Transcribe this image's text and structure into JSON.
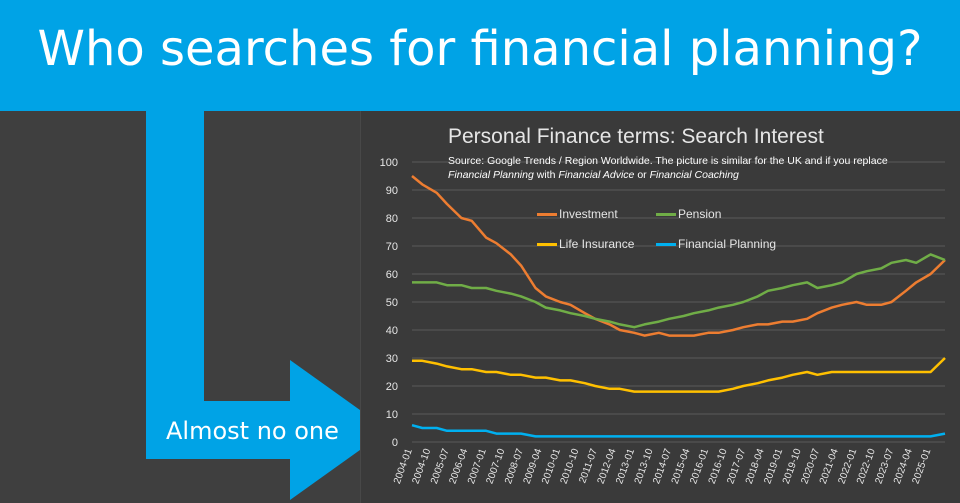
{
  "headline": "Who searches for financial planning?",
  "callout": "Almost no one",
  "colors": {
    "banner": "#00a3e6",
    "investment": "#ed7d31",
    "pension": "#70ad47",
    "life_insurance": "#ffc000",
    "financial_planning": "#00b0f0"
  },
  "chart_data": {
    "type": "line",
    "title": "Personal Finance terms: Search Interest",
    "source": {
      "part1": "Source: Google Trends / Region Worldwide. The picture is similar for the UK and if you replace",
      "term1": "Financial Planning",
      "part2": " with ",
      "term2": "Financial Advice",
      "part3": " or ",
      "term3": "Financial Coaching"
    },
    "ylim": [
      0,
      100
    ],
    "yticks": [
      0,
      10,
      20,
      30,
      40,
      50,
      60,
      70,
      80,
      90,
      100
    ],
    "xlabel": "",
    "ylabel": "",
    "legend_position": "top-center",
    "xticks": [
      "2004-01",
      "2004-10",
      "2005-07",
      "2006-04",
      "2007-01",
      "2007-10",
      "2008-07",
      "2009-04",
      "2010-01",
      "2010-10",
      "2011-07",
      "2012-04",
      "2013-01",
      "2013-10",
      "2014-07",
      "2015-04",
      "2016-01",
      "2016-10",
      "2017-07",
      "2018-04",
      "2019-01",
      "2019-10",
      "2020-07",
      "2021-04",
      "2022-01",
      "2022-10",
      "2023-07",
      "2024-04",
      "2025-01"
    ],
    "x_range": [
      "2004-01",
      "2025-08"
    ],
    "series": [
      {
        "name": "Investment",
        "color_key": "investment",
        "points": [
          [
            "2004-01",
            95
          ],
          [
            "2004-06",
            92
          ],
          [
            "2005-01",
            89
          ],
          [
            "2005-06",
            85
          ],
          [
            "2006-01",
            80
          ],
          [
            "2006-06",
            79
          ],
          [
            "2007-01",
            73
          ],
          [
            "2007-06",
            71
          ],
          [
            "2008-01",
            67
          ],
          [
            "2008-06",
            63
          ],
          [
            "2009-01",
            55
          ],
          [
            "2009-06",
            52
          ],
          [
            "2010-01",
            50
          ],
          [
            "2010-06",
            49
          ],
          [
            "2011-01",
            46
          ],
          [
            "2011-06",
            44
          ],
          [
            "2012-01",
            42
          ],
          [
            "2012-06",
            40
          ],
          [
            "2013-01",
            39
          ],
          [
            "2013-06",
            38
          ],
          [
            "2014-01",
            39
          ],
          [
            "2014-06",
            38
          ],
          [
            "2015-01",
            38
          ],
          [
            "2015-06",
            38
          ],
          [
            "2016-01",
            39
          ],
          [
            "2016-06",
            39
          ],
          [
            "2017-01",
            40
          ],
          [
            "2017-06",
            41
          ],
          [
            "2018-01",
            42
          ],
          [
            "2018-06",
            42
          ],
          [
            "2019-01",
            43
          ],
          [
            "2019-06",
            43
          ],
          [
            "2020-01",
            44
          ],
          [
            "2020-06",
            46
          ],
          [
            "2021-01",
            48
          ],
          [
            "2021-06",
            49
          ],
          [
            "2022-01",
            50
          ],
          [
            "2022-06",
            49
          ],
          [
            "2023-01",
            49
          ],
          [
            "2023-06",
            50
          ],
          [
            "2024-01",
            54
          ],
          [
            "2024-06",
            57
          ],
          [
            "2025-01",
            60
          ],
          [
            "2025-08",
            65
          ]
        ]
      },
      {
        "name": "Pension",
        "color_key": "pension",
        "points": [
          [
            "2004-01",
            57
          ],
          [
            "2004-06",
            57
          ],
          [
            "2005-01",
            57
          ],
          [
            "2005-06",
            56
          ],
          [
            "2006-01",
            56
          ],
          [
            "2006-06",
            55
          ],
          [
            "2007-01",
            55
          ],
          [
            "2007-06",
            54
          ],
          [
            "2008-01",
            53
          ],
          [
            "2008-06",
            52
          ],
          [
            "2009-01",
            50
          ],
          [
            "2009-06",
            48
          ],
          [
            "2010-01",
            47
          ],
          [
            "2010-06",
            46
          ],
          [
            "2011-01",
            45
          ],
          [
            "2011-06",
            44
          ],
          [
            "2012-01",
            43
          ],
          [
            "2012-06",
            42
          ],
          [
            "2013-01",
            41
          ],
          [
            "2013-06",
            42
          ],
          [
            "2014-01",
            43
          ],
          [
            "2014-06",
            44
          ],
          [
            "2015-01",
            45
          ],
          [
            "2015-06",
            46
          ],
          [
            "2016-01",
            47
          ],
          [
            "2016-06",
            48
          ],
          [
            "2017-01",
            49
          ],
          [
            "2017-06",
            50
          ],
          [
            "2018-01",
            52
          ],
          [
            "2018-06",
            54
          ],
          [
            "2019-01",
            55
          ],
          [
            "2019-06",
            56
          ],
          [
            "2020-01",
            57
          ],
          [
            "2020-06",
            55
          ],
          [
            "2021-01",
            56
          ],
          [
            "2021-06",
            57
          ],
          [
            "2022-01",
            60
          ],
          [
            "2022-06",
            61
          ],
          [
            "2023-01",
            62
          ],
          [
            "2023-06",
            64
          ],
          [
            "2024-01",
            65
          ],
          [
            "2024-06",
            64
          ],
          [
            "2025-01",
            67
          ],
          [
            "2025-08",
            65
          ]
        ]
      },
      {
        "name": "Life Insurance",
        "color_key": "life_insurance",
        "points": [
          [
            "2004-01",
            29
          ],
          [
            "2004-06",
            29
          ],
          [
            "2005-01",
            28
          ],
          [
            "2005-06",
            27
          ],
          [
            "2006-01",
            26
          ],
          [
            "2006-06",
            26
          ],
          [
            "2007-01",
            25
          ],
          [
            "2007-06",
            25
          ],
          [
            "2008-01",
            24
          ],
          [
            "2008-06",
            24
          ],
          [
            "2009-01",
            23
          ],
          [
            "2009-06",
            23
          ],
          [
            "2010-01",
            22
          ],
          [
            "2010-06",
            22
          ],
          [
            "2011-01",
            21
          ],
          [
            "2011-06",
            20
          ],
          [
            "2012-01",
            19
          ],
          [
            "2012-06",
            19
          ],
          [
            "2013-01",
            18
          ],
          [
            "2013-06",
            18
          ],
          [
            "2014-01",
            18
          ],
          [
            "2014-06",
            18
          ],
          [
            "2015-01",
            18
          ],
          [
            "2015-06",
            18
          ],
          [
            "2016-01",
            18
          ],
          [
            "2016-06",
            18
          ],
          [
            "2017-01",
            19
          ],
          [
            "2017-06",
            20
          ],
          [
            "2018-01",
            21
          ],
          [
            "2018-06",
            22
          ],
          [
            "2019-01",
            23
          ],
          [
            "2019-06",
            24
          ],
          [
            "2020-01",
            25
          ],
          [
            "2020-06",
            24
          ],
          [
            "2021-01",
            25
          ],
          [
            "2021-06",
            25
          ],
          [
            "2022-01",
            25
          ],
          [
            "2022-06",
            25
          ],
          [
            "2023-01",
            25
          ],
          [
            "2023-06",
            25
          ],
          [
            "2024-01",
            25
          ],
          [
            "2024-06",
            25
          ],
          [
            "2025-01",
            25
          ],
          [
            "2025-08",
            30
          ]
        ]
      },
      {
        "name": "Financial Planning",
        "color_key": "financial_planning",
        "points": [
          [
            "2004-01",
            6
          ],
          [
            "2004-06",
            5
          ],
          [
            "2005-01",
            5
          ],
          [
            "2005-06",
            4
          ],
          [
            "2006-01",
            4
          ],
          [
            "2006-06",
            4
          ],
          [
            "2007-01",
            4
          ],
          [
            "2007-06",
            3
          ],
          [
            "2008-01",
            3
          ],
          [
            "2008-06",
            3
          ],
          [
            "2009-01",
            2
          ],
          [
            "2009-06",
            2
          ],
          [
            "2010-01",
            2
          ],
          [
            "2010-06",
            2
          ],
          [
            "2011-01",
            2
          ],
          [
            "2011-06",
            2
          ],
          [
            "2012-01",
            2
          ],
          [
            "2012-06",
            2
          ],
          [
            "2013-01",
            2
          ],
          [
            "2013-06",
            2
          ],
          [
            "2014-01",
            2
          ],
          [
            "2014-06",
            2
          ],
          [
            "2015-01",
            2
          ],
          [
            "2015-06",
            2
          ],
          [
            "2016-01",
            2
          ],
          [
            "2016-06",
            2
          ],
          [
            "2017-01",
            2
          ],
          [
            "2017-06",
            2
          ],
          [
            "2018-01",
            2
          ],
          [
            "2018-06",
            2
          ],
          [
            "2019-01",
            2
          ],
          [
            "2019-06",
            2
          ],
          [
            "2020-01",
            2
          ],
          [
            "2020-06",
            2
          ],
          [
            "2021-01",
            2
          ],
          [
            "2021-06",
            2
          ],
          [
            "2022-01",
            2
          ],
          [
            "2022-06",
            2
          ],
          [
            "2023-01",
            2
          ],
          [
            "2023-06",
            2
          ],
          [
            "2024-01",
            2
          ],
          [
            "2024-06",
            2
          ],
          [
            "2025-01",
            2
          ],
          [
            "2025-08",
            3
          ]
        ]
      }
    ]
  }
}
